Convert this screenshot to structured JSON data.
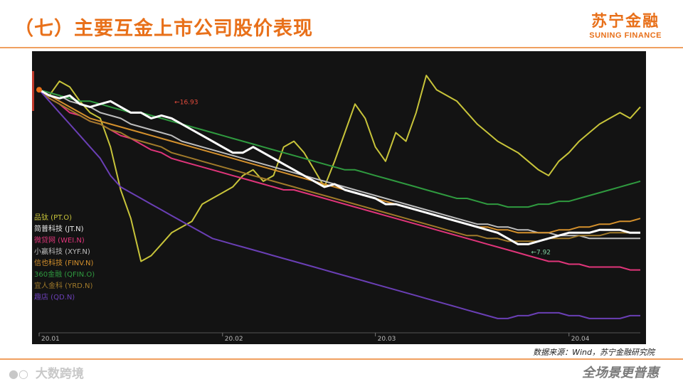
{
  "header": {
    "title": "（七）主要互金上市公司股价表现"
  },
  "brand": {
    "name_cn": "苏宁金融",
    "name_en": "SUNING FINANCE"
  },
  "source_note": "数据来源：Wind，苏宁金融研究院",
  "footer": {
    "watermark": "大数跨境",
    "slogan": "全场景更普惠"
  },
  "colors": {
    "accent": "#e8701a",
    "chart_bg": "#131313"
  },
  "chart_data": {
    "type": "line",
    "title": "",
    "xlabel": "",
    "ylabel": "",
    "x_ticks": [
      "20.01",
      "20.02",
      "20.03",
      "20.04"
    ],
    "grid": false,
    "legend_position": "left",
    "annotations": [
      {
        "text": "16.93",
        "series": "JT.N"
      },
      {
        "text": "7.92",
        "series": "JT.N"
      }
    ],
    "series": [
      {
        "name": "品钛 (PT.O)",
        "color": "#c8c43a",
        "values": [
          0,
          -2,
          3,
          1,
          -4,
          -8,
          -10,
          -20,
          -35,
          -45,
          -60,
          -58,
          -54,
          -50,
          -48,
          -46,
          -40,
          -38,
          -36,
          -34,
          -30,
          -28,
          -32,
          -30,
          -20,
          -18,
          -22,
          -28,
          -34,
          -25,
          -15,
          -5,
          -10,
          -20,
          -25,
          -15,
          -18,
          -8,
          5,
          0,
          -2,
          -4,
          -8,
          -12,
          -15,
          -18,
          -20,
          -22,
          -25,
          -28,
          -30,
          -25,
          -22,
          -18,
          -15,
          -12,
          -10,
          -8,
          -10,
          -6
        ]
      },
      {
        "name": "简普科技 (JT.N)",
        "color": "#ffffff",
        "values": [
          0,
          -2,
          -3,
          -2,
          -5,
          -6,
          -5,
          -4,
          -6,
          -8,
          -8,
          -10,
          -9,
          -10,
          -12,
          -14,
          -16,
          -18,
          -20,
          -22,
          -22,
          -20,
          -22,
          -24,
          -26,
          -28,
          -30,
          -32,
          -34,
          -33,
          -35,
          -36,
          -37,
          -38,
          -40,
          -40,
          -41,
          -42,
          -43,
          -44,
          -45,
          -46,
          -47,
          -48,
          -49,
          -50,
          -52,
          -54,
          -54,
          -53,
          -52,
          -51,
          -50,
          -50,
          -50,
          -49,
          -49,
          -49,
          -50,
          -50
        ]
      },
      {
        "name": "微贷网 (WEI.N)",
        "color": "#e0357a",
        "values": [
          0,
          -3,
          -5,
          -8,
          -9,
          -11,
          -12,
          -14,
          -16,
          -17,
          -19,
          -21,
          -22,
          -24,
          -25,
          -26,
          -27,
          -28,
          -29,
          -30,
          -31,
          -32,
          -33,
          -34,
          -35,
          -35,
          -36,
          -37,
          -38,
          -39,
          -40,
          -41,
          -42,
          -43,
          -44,
          -45,
          -46,
          -47,
          -48,
          -49,
          -50,
          -51,
          -52,
          -53,
          -54,
          -55,
          -56,
          -57,
          -58,
          -59,
          -60,
          -60,
          -61,
          -61,
          -62,
          -62,
          -62,
          -62,
          -63,
          -63
        ]
      },
      {
        "name": "小赢科技 (XYF.N)",
        "color": "#bdbdbd",
        "values": [
          0,
          -1,
          -2,
          -4,
          -5,
          -6,
          -8,
          -9,
          -10,
          -12,
          -13,
          -14,
          -15,
          -16,
          -18,
          -19,
          -20,
          -21,
          -22,
          -23,
          -24,
          -25,
          -26,
          -27,
          -28,
          -29,
          -30,
          -31,
          -32,
          -33,
          -34,
          -35,
          -36,
          -37,
          -38,
          -39,
          -40,
          -41,
          -42,
          -43,
          -44,
          -45,
          -46,
          -47,
          -47,
          -48,
          -48,
          -49,
          -49,
          -50,
          -50,
          -51,
          -51,
          -51,
          -52,
          -52,
          -52,
          -52,
          -52,
          -52
        ]
      },
      {
        "name": "信也科技 (FINV.N)",
        "color": "#d4902c",
        "values": [
          0,
          -2,
          -4,
          -6,
          -8,
          -10,
          -11,
          -12,
          -13,
          -14,
          -15,
          -16,
          -17,
          -18,
          -19,
          -20,
          -21,
          -22,
          -23,
          -24,
          -25,
          -26,
          -27,
          -28,
          -29,
          -30,
          -31,
          -32,
          -33,
          -34,
          -35,
          -36,
          -37,
          -38,
          -39,
          -40,
          -41,
          -42,
          -43,
          -44,
          -45,
          -46,
          -47,
          -48,
          -48,
          -49,
          -49,
          -50,
          -50,
          -50,
          -50,
          -49,
          -49,
          -48,
          -48,
          -47,
          -47,
          -46,
          -46,
          -45
        ]
      },
      {
        "name": "360金融 (QFIN.O)",
        "color": "#2f9a3f",
        "values": [
          0,
          -1,
          -2,
          -3,
          -4,
          -4,
          -5,
          -6,
          -7,
          -8,
          -8,
          -9,
          -10,
          -11,
          -12,
          -13,
          -14,
          -15,
          -16,
          -17,
          -18,
          -19,
          -20,
          -21,
          -22,
          -23,
          -24,
          -25,
          -26,
          -27,
          -28,
          -28,
          -29,
          -30,
          -31,
          -32,
          -33,
          -34,
          -35,
          -36,
          -37,
          -38,
          -38,
          -39,
          -40,
          -40,
          -41,
          -41,
          -41,
          -40,
          -40,
          -39,
          -39,
          -38,
          -37,
          -36,
          -35,
          -34,
          -33,
          -32
        ]
      },
      {
        "name": "宜人金科 (YRD.N)",
        "color": "#a07a2a",
        "values": [
          0,
          -3,
          -5,
          -7,
          -9,
          -11,
          -12,
          -14,
          -15,
          -17,
          -18,
          -19,
          -20,
          -22,
          -23,
          -24,
          -25,
          -26,
          -27,
          -28,
          -29,
          -30,
          -31,
          -32,
          -33,
          -34,
          -35,
          -36,
          -37,
          -38,
          -39,
          -40,
          -41,
          -42,
          -43,
          -44,
          -45,
          -46,
          -47,
          -48,
          -49,
          -50,
          -51,
          -51,
          -52,
          -52,
          -53,
          -53,
          -53,
          -53,
          -52,
          -52,
          -52,
          -51,
          -51,
          -51,
          -50,
          -50,
          -50,
          -50
        ]
      },
      {
        "name": "趣店 (QD.N)",
        "color": "#6a3fb5",
        "values": [
          0,
          -4,
          -8,
          -12,
          -16,
          -20,
          -24,
          -30,
          -34,
          -36,
          -38,
          -40,
          -42,
          -44,
          -46,
          -48,
          -50,
          -52,
          -53,
          -54,
          -55,
          -56,
          -57,
          -58,
          -59,
          -60,
          -61,
          -62,
          -63,
          -64,
          -65,
          -66,
          -67,
          -68,
          -69,
          -70,
          -71,
          -72,
          -73,
          -74,
          -75,
          -76,
          -77,
          -78,
          -79,
          -80,
          -80,
          -79,
          -79,
          -78,
          -78,
          -78,
          -79,
          -79,
          -80,
          -80,
          -80,
          -80,
          -79,
          -79
        ]
      }
    ]
  }
}
